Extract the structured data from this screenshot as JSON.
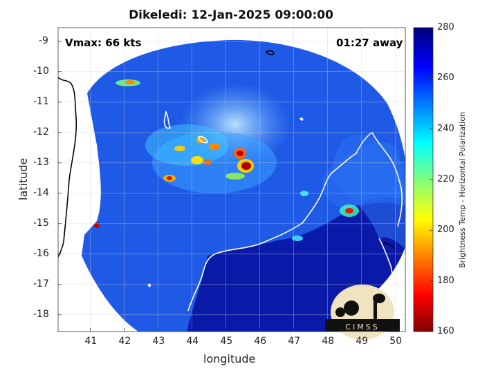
{
  "title": "Dikeledi: 12-Jan-2025 09:00:00",
  "annotations": {
    "vmax": "Vmax: 66 kts",
    "time_away": "01:27 away"
  },
  "axes": {
    "x_label": "longitude",
    "y_label": "latitude",
    "x_ticks": [
      "41",
      "42",
      "43",
      "44",
      "45",
      "46",
      "47",
      "48",
      "49",
      "50"
    ],
    "y_ticks": [
      "-9",
      "-10",
      "-11",
      "-12",
      "-13",
      "-14",
      "-15",
      "-16",
      "-17",
      "-18"
    ],
    "x_range": [
      40.05,
      50.3
    ],
    "y_range": [
      -18.55,
      -8.55
    ],
    "grid": true
  },
  "colorbar": {
    "label": "Brightness Temp - Horizontal Polarization",
    "ticks": [
      "280",
      "260",
      "240",
      "220",
      "200",
      "180",
      "160"
    ],
    "range": [
      160,
      280
    ],
    "colormap": "jet"
  },
  "logo": {
    "text": "CIMSS"
  },
  "colors": {
    "storm_core": "#8b0000",
    "background_low": "#00008b",
    "field": "#1e5ae6"
  }
}
